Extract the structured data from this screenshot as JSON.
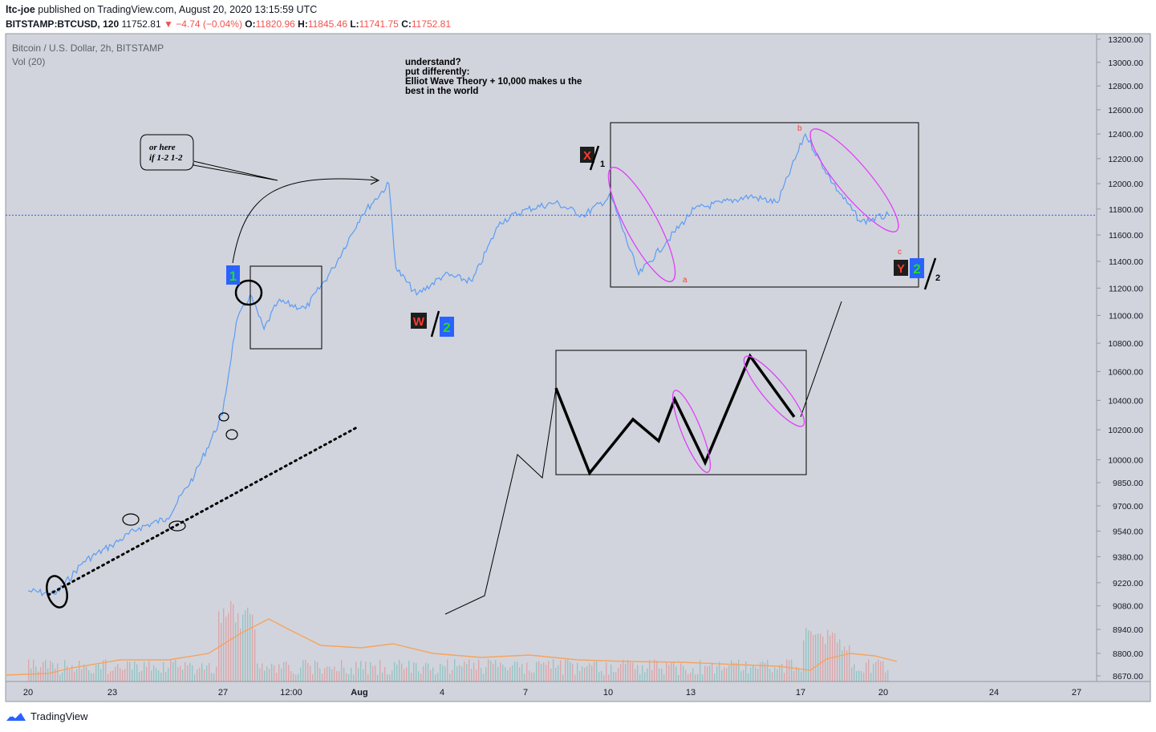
{
  "header": {
    "author": "ltc-joe",
    "published_text": "published on TradingView.com, August 20, 2020 13:15:59 UTC",
    "symbol": "BITSTAMP:BTCUSD, 120",
    "last": "11752.81",
    "change": "−4.74 (−0.04%)",
    "o_label": "O:",
    "o_value": "11820.96",
    "h_label": "H:",
    "h_value": "11845.46",
    "l_label": "L:",
    "l_value": "11741.75",
    "c_label": "C:",
    "c_value": "11752.81"
  },
  "legend": {
    "title": "Bitcoin / U.S. Dollar, 2h, BITSTAMP",
    "vol": "Vol (20)"
  },
  "annotations": {
    "note_lines": [
      "understand?",
      "put differently:",
      "Elliot Wave Theory + 10,000 makes u the",
      "best in the world"
    ],
    "callout_lines": [
      "or here",
      "if 1-2 1-2"
    ],
    "wave_labels": [
      {
        "text": "1",
        "bg": "#2962ff",
        "fg": "#22dd22"
      },
      {
        "text": "W",
        "bg": "#1e1e1e",
        "fg": "#ff3b30"
      },
      {
        "text": "2",
        "bg": "#2962ff",
        "fg": "#22dd22"
      },
      {
        "text": "X",
        "bg": "#1e1e1e",
        "fg": "#ff3b30"
      },
      {
        "text": "Y",
        "bg": "#1e1e1e",
        "fg": "#ff3b30"
      },
      {
        "text": "2",
        "bg": "#2962ff",
        "fg": "#22dd22"
      }
    ],
    "small_labels": [
      "1",
      "2",
      "a",
      "b",
      "c"
    ]
  },
  "footer": {
    "brand": "TradingView"
  },
  "colors": {
    "pane_bg": "#d1d4dc",
    "price_line": "#5b9cf6",
    "current_price_line": "#2962ff",
    "volume_ma": "#f7a35c",
    "ellipse_magenta": "#e040fb",
    "red_label": "#ff3b30"
  },
  "chart_data": {
    "type": "line",
    "symbol": "BTCUSD",
    "interval": "2h",
    "x_ticks": [
      "20",
      "23",
      "27",
      "12:00",
      "Aug",
      "4",
      "7",
      "10",
      "13",
      "17",
      "20",
      "24",
      "27"
    ],
    "y_ticks": [
      "13200.00",
      "13000.00",
      "12800.00",
      "12600.00",
      "12400.00",
      "12200.00",
      "12000.00",
      "11800.00",
      "11600.00",
      "11400.00",
      "11200.00",
      "11000.00",
      "10800.00",
      "10600.00",
      "10400.00",
      "10200.00",
      "10000.00",
      "9850.00",
      "9700.00",
      "9540.00",
      "9380.00",
      "9220.00",
      "9080.00",
      "8940.00",
      "8800.00",
      "8670.00"
    ],
    "price_scale": "log",
    "current_price": 11752.81,
    "series": [
      {
        "values": [
          {
            "date": "2020-07-20",
            "close": 9170
          },
          {
            "date": "2020-07-21",
            "close": 9150
          },
          {
            "date": "2020-07-22",
            "close": 9350
          },
          {
            "date": "2020-07-23",
            "close": 9450
          },
          {
            "date": "2020-07-24",
            "close": 9560
          },
          {
            "date": "2020-07-25",
            "close": 9620
          },
          {
            "date": "2020-07-26",
            "close": 9900
          },
          {
            "date": "2020-07-27",
            "close": 10300
          },
          {
            "date": "2020-07-27T12:00",
            "close": 10950
          },
          {
            "date": "2020-07-28",
            "close": 11150
          },
          {
            "date": "2020-07-28T12:00",
            "close": 10900
          },
          {
            "date": "2020-07-29",
            "close": 11100
          },
          {
            "date": "2020-07-30",
            "close": 11050
          },
          {
            "date": "2020-07-31",
            "close": 11350
          },
          {
            "date": "2020-08-01",
            "close": 11750
          },
          {
            "date": "2020-08-02",
            "close": 12000
          },
          {
            "date": "2020-08-02T06:00",
            "close": 11350
          },
          {
            "date": "2020-08-03",
            "close": 11150
          },
          {
            "date": "2020-08-04",
            "close": 11300
          },
          {
            "date": "2020-08-05",
            "close": 11250
          },
          {
            "date": "2020-08-06",
            "close": 11700
          },
          {
            "date": "2020-08-07",
            "close": 11800
          },
          {
            "date": "2020-08-08",
            "close": 11850
          },
          {
            "date": "2020-08-09",
            "close": 11750
          },
          {
            "date": "2020-08-10",
            "close": 11900
          },
          {
            "date": "2020-08-11",
            "close": 11300
          },
          {
            "date": "2020-08-12",
            "close": 11550
          },
          {
            "date": "2020-08-13",
            "close": 11800
          },
          {
            "date": "2020-08-14",
            "close": 11850
          },
          {
            "date": "2020-08-15",
            "close": 11900
          },
          {
            "date": "2020-08-16",
            "close": 11850
          },
          {
            "date": "2020-08-17",
            "close": 12400
          },
          {
            "date": "2020-08-18",
            "close": 12000
          },
          {
            "date": "2020-08-19",
            "close": 11700
          },
          {
            "date": "2020-08-20",
            "close": 11752.81
          }
        ]
      }
    ],
    "volume": {
      "name": "Vol (20)"
    }
  }
}
